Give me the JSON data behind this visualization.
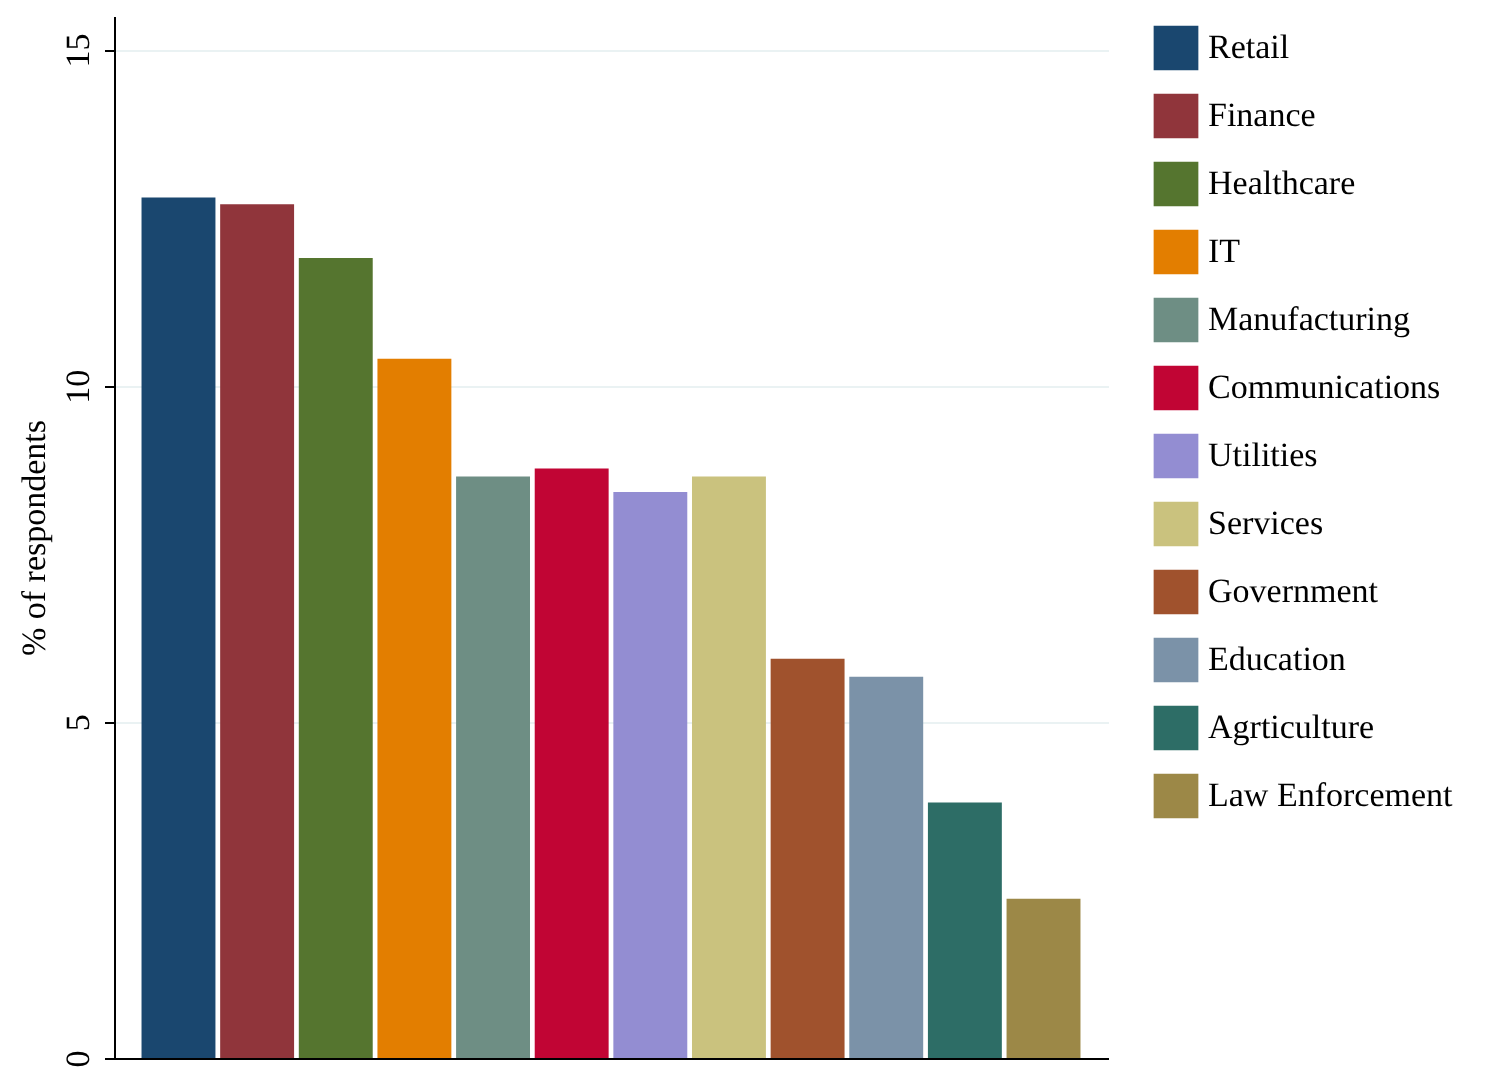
{
  "chart_data": {
    "type": "bar",
    "ylabel": "% of respondents",
    "categories": [
      null,
      null,
      null,
      null,
      null,
      null,
      null,
      null,
      null,
      null,
      null,
      null
    ],
    "series": [
      {
        "name": "Retail",
        "color": "#1a476f",
        "values": [
          12.8,
          null,
          null,
          null,
          null,
          null,
          null,
          null,
          null,
          null,
          null,
          null
        ]
      },
      {
        "name": "Finance",
        "color": "#90353b",
        "values": [
          null,
          12.7,
          null,
          null,
          null,
          null,
          null,
          null,
          null,
          null,
          null,
          null
        ]
      },
      {
        "name": "Healthcare",
        "color": "#55752f",
        "values": [
          null,
          null,
          11.9,
          null,
          null,
          null,
          null,
          null,
          null,
          null,
          null,
          null
        ]
      },
      {
        "name": "IT",
        "color": "#e37e00",
        "values": [
          null,
          null,
          null,
          10.4,
          null,
          null,
          null,
          null,
          null,
          null,
          null,
          null
        ]
      },
      {
        "name": "Manufacturing",
        "color": "#6e8e84",
        "values": [
          null,
          null,
          null,
          null,
          8.65,
          null,
          null,
          null,
          null,
          null,
          null,
          null
        ]
      },
      {
        "name": "Communications",
        "color": "#c10534",
        "values": [
          null,
          null,
          null,
          null,
          null,
          8.77,
          null,
          null,
          null,
          null,
          null,
          null
        ]
      },
      {
        "name": "Utilities",
        "color": "#938dd2",
        "values": [
          null,
          null,
          null,
          null,
          null,
          null,
          8.42,
          null,
          null,
          null,
          null,
          null
        ]
      },
      {
        "name": "Services",
        "color": "#cac27e",
        "values": [
          null,
          null,
          null,
          null,
          null,
          null,
          null,
          8.65,
          null,
          null,
          null,
          null
        ]
      },
      {
        "name": "Government",
        "color": "#a0522d",
        "values": [
          null,
          null,
          null,
          null,
          null,
          null,
          null,
          null,
          5.94,
          null,
          null,
          null
        ]
      },
      {
        "name": "Education",
        "color": "#7b92a8",
        "values": [
          null,
          null,
          null,
          null,
          null,
          null,
          null,
          null,
          null,
          5.67,
          null,
          null
        ]
      },
      {
        "name": "Agrticulture",
        "color": "#2d6d66",
        "values": [
          null,
          null,
          null,
          null,
          null,
          null,
          null,
          null,
          null,
          null,
          3.8,
          null
        ]
      },
      {
        "name": "Law Enforcement",
        "color": "#9c8847",
        "values": [
          null,
          null,
          null,
          null,
          null,
          null,
          null,
          null,
          null,
          null,
          null,
          2.37
        ]
      }
    ],
    "ylim": [
      0,
      15.5
    ],
    "yticks": [
      0,
      5,
      10,
      15
    ],
    "grid": "y",
    "legend": "right",
    "tick_labels": "y"
  }
}
